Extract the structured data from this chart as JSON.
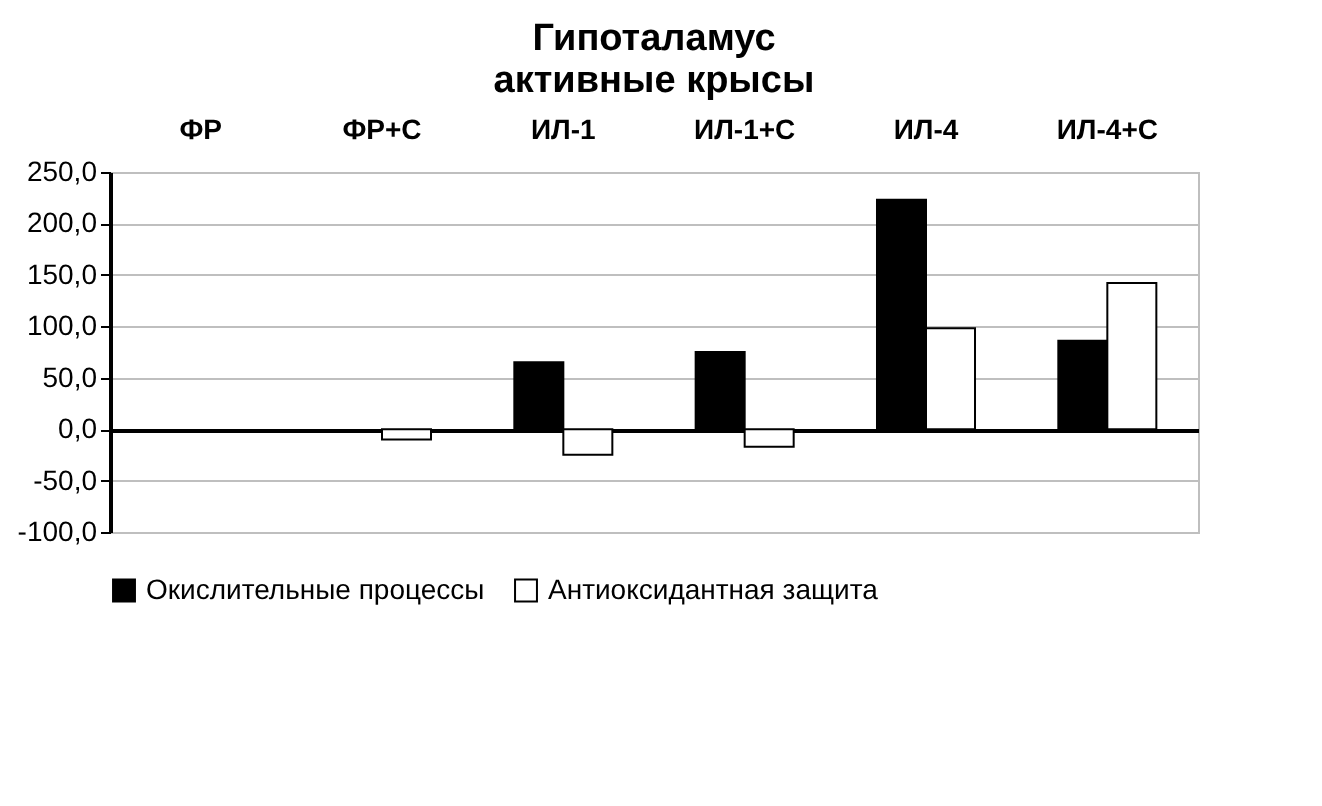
{
  "chart_data": {
    "type": "bar",
    "title": "Гипоталамус\nактивные крысы",
    "categories": [
      "ФР",
      "ФР+С",
      "ИЛ-1",
      "ИЛ-1+С",
      "ИЛ-4",
      "ИЛ-4+С"
    ],
    "series": [
      {
        "name": "Окислительные процессы",
        "color": "#000000",
        "values": [
          null,
          null,
          65,
          75,
          223,
          86
        ]
      },
      {
        "name": "Антиоксидантная защита",
        "color": "#ffffff",
        "values": [
          null,
          -10,
          -25,
          -17,
          98,
          142
        ]
      }
    ],
    "ylim": [
      -100,
      250
    ],
    "yticks": [
      {
        "value": -100,
        "label": "-100,0"
      },
      {
        "value": -50,
        "label": "-50,0"
      },
      {
        "value": 0,
        "label": "0,0"
      },
      {
        "value": 50,
        "label": "50,0"
      },
      {
        "value": 100,
        "label": "100,0"
      },
      {
        "value": 150,
        "label": "150,0"
      },
      {
        "value": 200,
        "label": "200,0"
      },
      {
        "value": 250,
        "label": "250,0"
      }
    ],
    "grid": "y",
    "legend": "bottom"
  }
}
